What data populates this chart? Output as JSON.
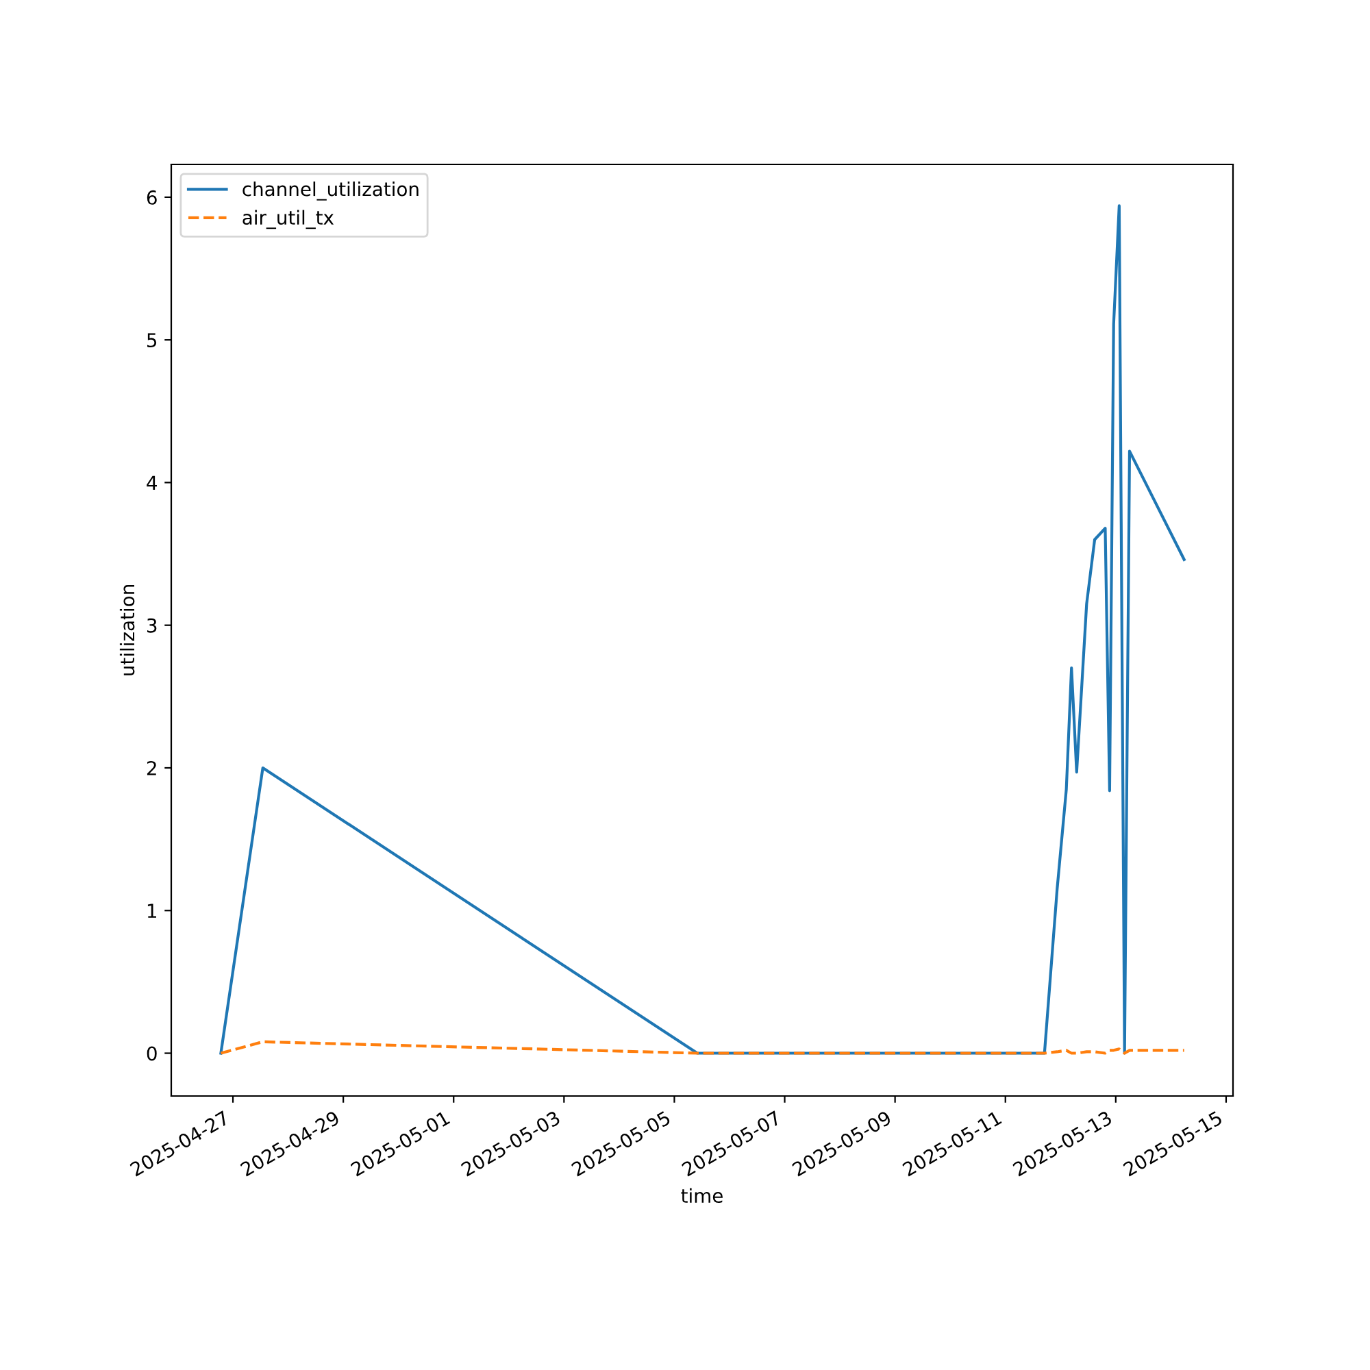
{
  "chart_data": {
    "type": "line",
    "xlabel": "time",
    "ylabel": "utilization",
    "x": [
      "2025-04-26T18:45",
      "2025-04-27T13:00",
      "2025-05-05T10:00",
      "2025-05-11T17:00",
      "2025-05-11T22:30",
      "2025-05-12T02:30",
      "2025-05-12T04:45",
      "2025-05-12T07:00",
      "2025-05-12T11:20",
      "2025-05-12T14:50",
      "2025-05-12T19:25",
      "2025-05-12T21:20",
      "2025-05-12T23:05",
      "2025-05-13T01:30",
      "2025-05-13T03:50",
      "2025-05-13T06:00",
      "2025-05-14T05:45"
    ],
    "series": [
      {
        "name": "channel_utilization",
        "color": "#1f77b4",
        "line_style": "solid",
        "values": [
          0,
          2.0,
          0,
          0,
          1.15,
          1.85,
          2.7,
          1.97,
          3.15,
          3.6,
          3.68,
          1.84,
          5.11,
          5.94,
          0,
          4.22,
          3.46
        ]
      },
      {
        "name": "air_util_tx",
        "color": "#ff7f0e",
        "line_style": "dashed",
        "values": [
          0,
          0.08,
          0.0,
          0,
          0.01,
          0.02,
          0.0,
          0.0,
          0.01,
          0.01,
          0.0,
          0.02,
          0.02,
          0.03,
          0.0,
          0.02,
          0.02
        ]
      }
    ],
    "xlim": [
      "2025-04-25T21:10",
      "2025-05-15T03:00"
    ],
    "xticks": [
      "2025-04-27",
      "2025-04-29",
      "2025-05-01",
      "2025-05-03",
      "2025-05-05",
      "2025-05-07",
      "2025-05-09",
      "2025-05-11",
      "2025-05-13",
      "2025-05-15"
    ],
    "ylim": [
      -0.3,
      6.23
    ],
    "yticks": [
      0,
      1,
      2,
      3,
      4,
      5,
      6
    ],
    "legend": "top left",
    "grid": false
  }
}
